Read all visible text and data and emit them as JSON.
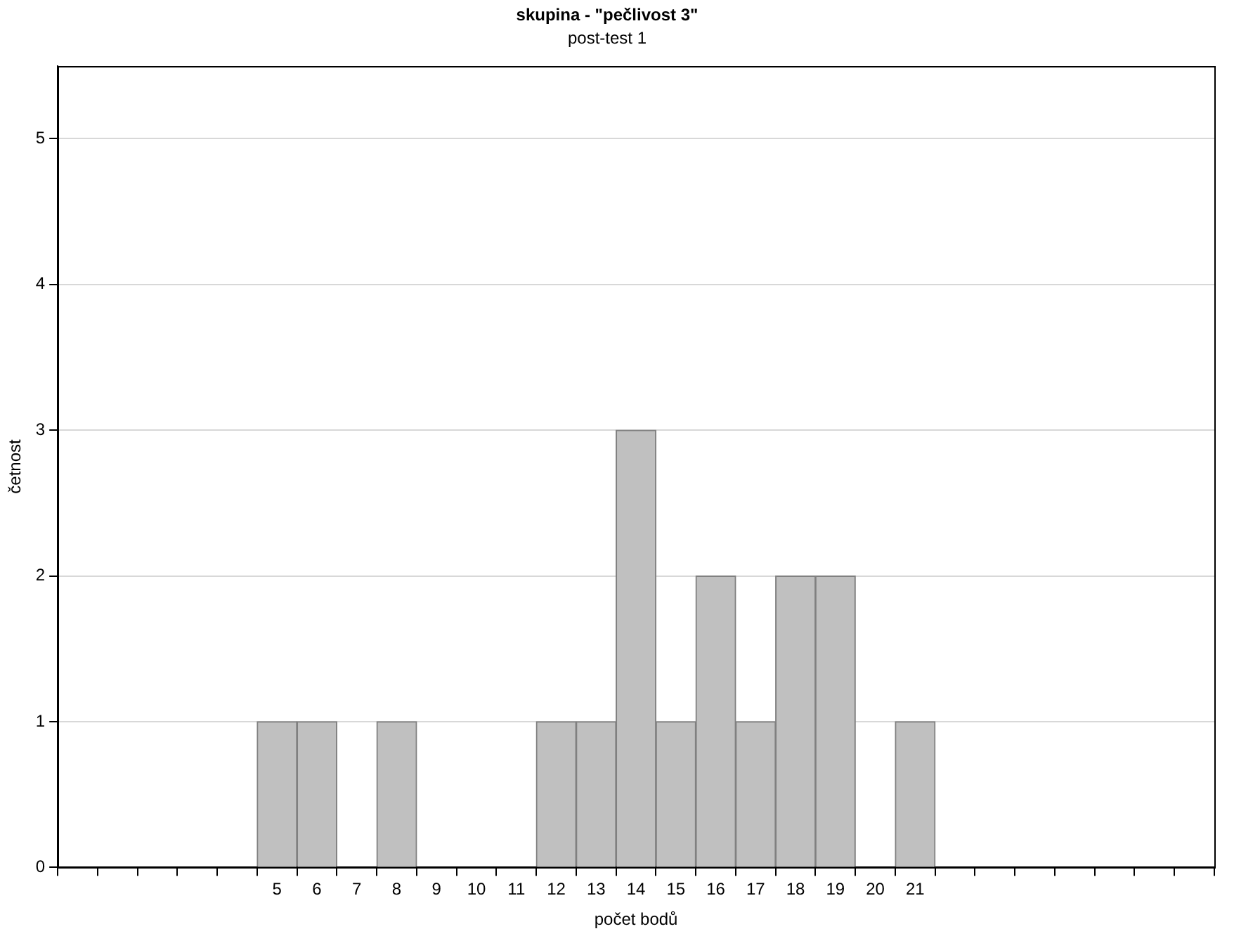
{
  "chart_data": {
    "type": "bar",
    "title": "skupina - \"pečlivost 3\"",
    "subtitle": "post-test 1",
    "xlabel": "počet bodů",
    "ylabel": "četnost",
    "categories": [
      null,
      null,
      null,
      null,
      null,
      "5",
      "6",
      "7",
      "8",
      "9",
      "10",
      "11",
      "12",
      "13",
      "14",
      "15",
      "16",
      "17",
      "18",
      "19",
      "20",
      "21",
      null,
      null,
      null,
      null,
      null,
      null,
      null
    ],
    "values": [
      0,
      0,
      0,
      0,
      0,
      1,
      1,
      0,
      1,
      0,
      0,
      0,
      1,
      1,
      3,
      1,
      2,
      1,
      2,
      2,
      0,
      1,
      0,
      0,
      0,
      0,
      0,
      0,
      0
    ],
    "color": "#c0c0c0",
    "ylim": [
      0,
      5.5
    ],
    "yticks": [
      0,
      1,
      2,
      3,
      4,
      5
    ],
    "grid": "y",
    "legend": false
  }
}
